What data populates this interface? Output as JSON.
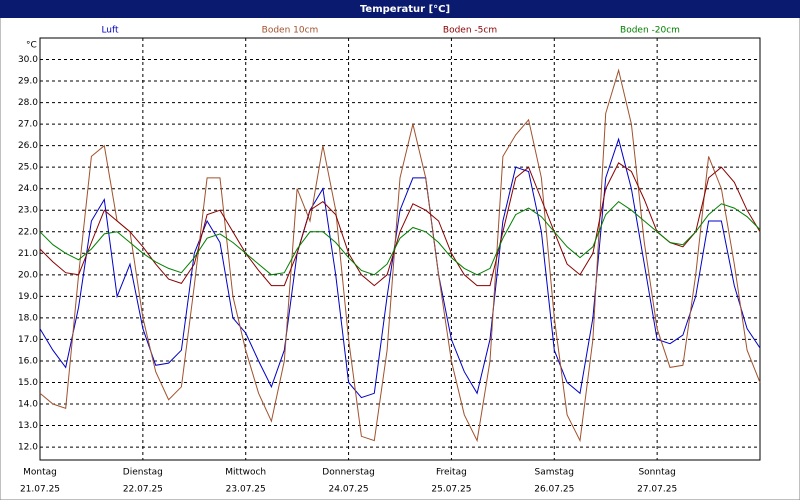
{
  "chart_data": {
    "type": "line",
    "title": "Temperatur [°C]",
    "y_unit": "°C",
    "x": [
      0,
      3,
      6,
      9,
      12,
      15,
      18,
      21,
      24,
      27,
      30,
      33,
      36,
      39,
      42,
      45,
      48,
      51,
      54,
      57,
      60,
      63,
      66,
      69,
      72,
      75,
      78,
      81,
      84,
      87,
      90,
      93,
      96,
      99,
      102,
      105,
      108,
      111,
      114,
      117,
      120,
      123,
      126,
      129,
      132,
      135,
      138,
      141,
      144,
      147,
      150,
      153,
      156,
      159,
      162,
      165,
      168
    ],
    "xlim": [
      0,
      168
    ],
    "xticks": [
      {
        "value": 0,
        "label": "Montag",
        "date": "21.07.25"
      },
      {
        "value": 24,
        "label": "Dienstag",
        "date": "22.07.25"
      },
      {
        "value": 48,
        "label": "Mittwoch",
        "date": "23.07.25"
      },
      {
        "value": 72,
        "label": "Donnerstag",
        "date": "24.07.25"
      },
      {
        "value": 96,
        "label": "Freitag",
        "date": "25.07.25"
      },
      {
        "value": 120,
        "label": "Samstag",
        "date": "26.07.25"
      },
      {
        "value": 144,
        "label": "Sonntag",
        "date": "27.07.25"
      }
    ],
    "ylim": [
      11.4,
      31
    ],
    "yticks": [
      {
        "value": 12,
        "label": "12.0"
      },
      {
        "value": 13,
        "label": "13.0"
      },
      {
        "value": 14,
        "label": "14.0"
      },
      {
        "value": 15,
        "label": "15.0"
      },
      {
        "value": 16,
        "label": "16.0"
      },
      {
        "value": 17,
        "label": "17.0"
      },
      {
        "value": 18,
        "label": "18.0"
      },
      {
        "value": 19,
        "label": "19.0"
      },
      {
        "value": 20,
        "label": "20.0"
      },
      {
        "value": 21,
        "label": "21.0"
      },
      {
        "value": 22,
        "label": "22.0"
      },
      {
        "value": 23,
        "label": "23.0"
      },
      {
        "value": 24,
        "label": "24.0"
      },
      {
        "value": 25,
        "label": "25.0"
      },
      {
        "value": 26,
        "label": "26.0"
      },
      {
        "value": 27,
        "label": "27.0"
      },
      {
        "value": 28,
        "label": "28.0"
      },
      {
        "value": 29,
        "label": "29.0"
      },
      {
        "value": 30,
        "label": "30.0"
      }
    ],
    "grid": true,
    "series": [
      {
        "name": "Luft",
        "color": "#0000c8",
        "values": [
          17.5,
          16.5,
          15.7,
          18.5,
          22.5,
          23.5,
          19.0,
          20.5,
          17.5,
          15.8,
          15.9,
          16.5,
          21.0,
          22.5,
          21.5,
          18.0,
          17.3,
          16.0,
          14.8,
          16.5,
          21.0,
          23.0,
          24.0,
          20.0,
          15.0,
          14.3,
          14.5,
          19.0,
          23.0,
          24.5,
          24.5,
          20.0,
          17.0,
          15.5,
          14.5,
          17.0,
          22.5,
          25.0,
          24.8,
          22.0,
          16.5,
          15.0,
          14.5,
          18.0,
          24.5,
          26.3,
          24.0,
          20.5,
          17.0,
          16.8,
          17.2,
          19.0,
          22.5,
          22.5,
          19.5,
          17.5,
          16.6
        ]
      },
      {
        "name": "Boden 10cm",
        "color": "#a0522d",
        "values": [
          14.5,
          14.0,
          13.8,
          20.0,
          25.5,
          26.0,
          22.5,
          22.0,
          18.0,
          15.5,
          14.2,
          14.8,
          19.5,
          24.5,
          24.5,
          19.0,
          16.5,
          14.5,
          13.2,
          16.0,
          24.0,
          22.5,
          26.0,
          23.0,
          17.0,
          12.5,
          12.3,
          16.5,
          24.5,
          27.0,
          24.5,
          20.0,
          16.0,
          13.5,
          12.3,
          16.0,
          25.5,
          26.5,
          27.2,
          24.5,
          18.0,
          13.5,
          12.3,
          17.0,
          27.5,
          29.5,
          27.0,
          21.5,
          17.5,
          15.7,
          15.8,
          20.0,
          25.5,
          24.0,
          20.5,
          16.5,
          15.0
        ]
      },
      {
        "name": "Boden -5cm",
        "color": "#8b0000",
        "values": [
          21.2,
          20.6,
          20.1,
          20.0,
          21.5,
          23.0,
          22.5,
          22.0,
          21.3,
          20.5,
          19.8,
          19.6,
          20.5,
          22.8,
          23.0,
          22.0,
          21.0,
          20.2,
          19.5,
          19.5,
          21.0,
          23.0,
          23.4,
          22.8,
          21.0,
          20.0,
          19.5,
          20.0,
          22.0,
          23.3,
          23.0,
          22.5,
          21.0,
          20.0,
          19.5,
          19.5,
          22.0,
          24.5,
          25.0,
          23.5,
          22.0,
          20.5,
          20.0,
          21.0,
          24.0,
          25.2,
          24.8,
          23.5,
          22.0,
          21.5,
          21.3,
          22.0,
          24.5,
          25.0,
          24.3,
          23.0,
          22.0
        ]
      },
      {
        "name": "Boden -20cm",
        "color": "#008000",
        "values": [
          22.0,
          21.4,
          21.0,
          20.7,
          21.2,
          21.9,
          22.0,
          21.5,
          21.0,
          20.6,
          20.3,
          20.1,
          20.8,
          21.7,
          21.9,
          21.5,
          21.0,
          20.5,
          20.0,
          20.1,
          21.2,
          22.0,
          22.0,
          21.5,
          20.8,
          20.2,
          20.0,
          20.5,
          21.7,
          22.2,
          22.0,
          21.5,
          20.8,
          20.3,
          20.0,
          20.3,
          21.7,
          22.8,
          23.1,
          22.7,
          22.0,
          21.3,
          20.8,
          21.3,
          22.8,
          23.4,
          23.0,
          22.5,
          22.0,
          21.5,
          21.4,
          22.0,
          22.8,
          23.3,
          23.1,
          22.7,
          22.1
        ]
      }
    ]
  }
}
